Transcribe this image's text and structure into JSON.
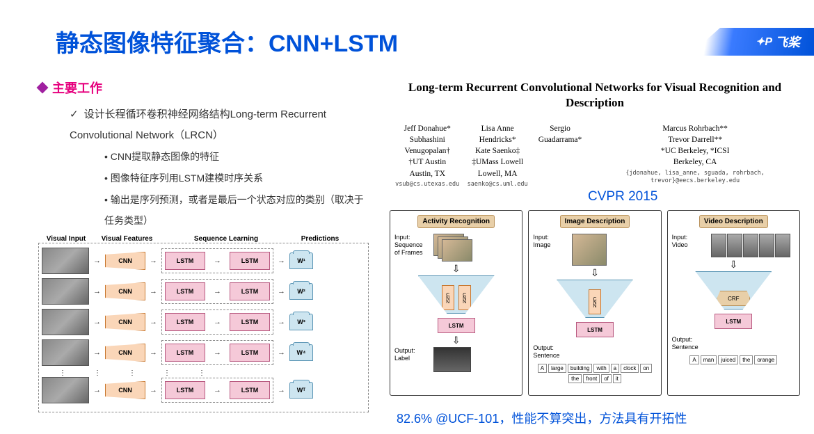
{
  "title": "静态图像特征聚合：CNN+LSTM",
  "logo": "飞桨",
  "section": "主要工作",
  "bullets": {
    "main": "设计长程循环卷积神经网络结构Long-term Recurrent Convolutional Network（LRCN）",
    "sub1": "CNN提取静态图像的特征",
    "sub2": "图像特征序列用LSTM建模时序关系",
    "sub3": "输出是序列预测，或者是最后一个状态对应的类别（取决于任务类型）"
  },
  "left_diagram": {
    "headers": [
      "Visual Input",
      "Visual Features",
      "Sequence Learning",
      "Predictions"
    ],
    "cnn_label": "CNN",
    "lstm_label": "LSTM",
    "preds": [
      "W¹",
      "W²",
      "W³",
      "W⁴",
      "Wᵀ"
    ],
    "row_count": 5,
    "colors": {
      "cnn_bg": "#fad6b8",
      "cnn_border": "#c87830",
      "lstm_bg": "#f5c9d8",
      "lstm_border": "#b85980",
      "pred_bg": "#cde5f0",
      "pred_border": "#5a95b5"
    }
  },
  "paper": {
    "title": "Long-term Recurrent Convolutional Networks for Visual Recognition and Description",
    "col1": {
      "a1": "Jeff Donahue*",
      "a2": "Subhashini Venugopalan†",
      "inst": "†UT Austin",
      "loc": "Austin, TX",
      "email": "vsub@cs.utexas.edu"
    },
    "col2": {
      "a1": "Lisa Anne Hendricks*",
      "a2": "Kate Saenko‡",
      "inst": "‡UMass Lowell",
      "loc": "Lowell, MA",
      "email": "saenko@cs.uml.edu"
    },
    "col3": {
      "a1": "Sergio Guadarrama*",
      "inst": "",
      "loc": ""
    },
    "col4": {
      "a1": "Marcus Rohrbach**",
      "a2": "Trevor Darrell**",
      "inst": "*UC Berkeley, *ICSI",
      "loc": "Berkeley, CA",
      "email": "{jdonahue, lisa_anne, sguada, rohrbach, trevor}@eecs.berkeley.edu"
    }
  },
  "cvpr": "CVPR 2015",
  "panels": {
    "p1": {
      "title": "Activity Recognition",
      "input_label": "Input:\nSequence\nof Frames",
      "cnn": "CNN",
      "lstm": "LSTM",
      "output_label": "Output:\nLabel"
    },
    "p2": {
      "title": "Image Description",
      "input_label": "Input:\nImage",
      "cnn": "CNN",
      "lstm": "LSTM",
      "output_label": "Output:\nSentence",
      "words": [
        "A",
        "large",
        "building",
        "with",
        "a",
        "clock",
        "on",
        "the",
        "front",
        "of",
        "it"
      ]
    },
    "p3": {
      "title": "Video Description",
      "input_label": "Input:\nVideo",
      "crf": "CRF",
      "lstm": "LSTM",
      "output_label": "Output:\nSentence",
      "words": [
        "A",
        "man",
        "juiced",
        "the",
        "orange"
      ]
    }
  },
  "bottom_note": "82.6% @UCF-101，性能不算突出，方法具有开拓性",
  "colors": {
    "brand": "#0052d9",
    "magenta": "#e6007e",
    "diamond": "#a020a0",
    "panel_title_bg": "#e8cfa8",
    "funnel_bg": "#cde5f0"
  },
  "typography": {
    "title_fontsize": 34,
    "body_fontsize": 15,
    "paper_title_font": "Times New Roman"
  }
}
